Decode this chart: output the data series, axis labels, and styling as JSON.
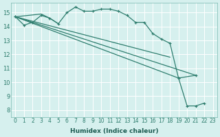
{
  "title": "",
  "xlabel": "Humidex (Indice chaleur)",
  "background_color": "#d6f0ee",
  "grid_color": "#c0e0dc",
  "line_color": "#2e7d6e",
  "xlim": [
    -0.5,
    23.5
  ],
  "ylim": [
    7.5,
    15.7
  ],
  "xticks": [
    0,
    1,
    2,
    3,
    4,
    5,
    6,
    7,
    8,
    9,
    10,
    11,
    12,
    13,
    14,
    15,
    16,
    17,
    18,
    19,
    20,
    21,
    22,
    23
  ],
  "yticks": [
    8,
    9,
    10,
    11,
    12,
    13,
    14,
    15
  ],
  "curve": [
    [
      0,
      14.7
    ],
    [
      1,
      14.1
    ],
    [
      2,
      14.3
    ],
    [
      3,
      14.8
    ],
    [
      4,
      14.6
    ],
    [
      5,
      14.2
    ],
    [
      6,
      15.0
    ],
    [
      7,
      15.4
    ],
    [
      8,
      15.1
    ],
    [
      9,
      15.1
    ],
    [
      10,
      15.25
    ],
    [
      11,
      15.25
    ],
    [
      12,
      15.1
    ],
    [
      13,
      14.8
    ],
    [
      14,
      14.3
    ],
    [
      15,
      14.3
    ],
    [
      16,
      13.5
    ],
    [
      17,
      13.1
    ],
    [
      18,
      12.8
    ],
    [
      19,
      10.3
    ],
    [
      21,
      10.5
    ]
  ],
  "line1": [
    [
      0,
      14.7
    ],
    [
      3,
      14.9
    ],
    [
      4,
      14.6
    ],
    [
      5,
      14.2
    ]
  ],
  "line2": [
    [
      0,
      14.7
    ],
    [
      18,
      11.8
    ]
  ],
  "line3": [
    [
      0,
      14.7
    ],
    [
      19,
      10.3
    ],
    [
      20,
      8.3
    ],
    [
      21,
      8.3
    ],
    [
      22,
      8.5
    ]
  ],
  "line4": [
    [
      0,
      14.7
    ],
    [
      21,
      10.5
    ]
  ]
}
